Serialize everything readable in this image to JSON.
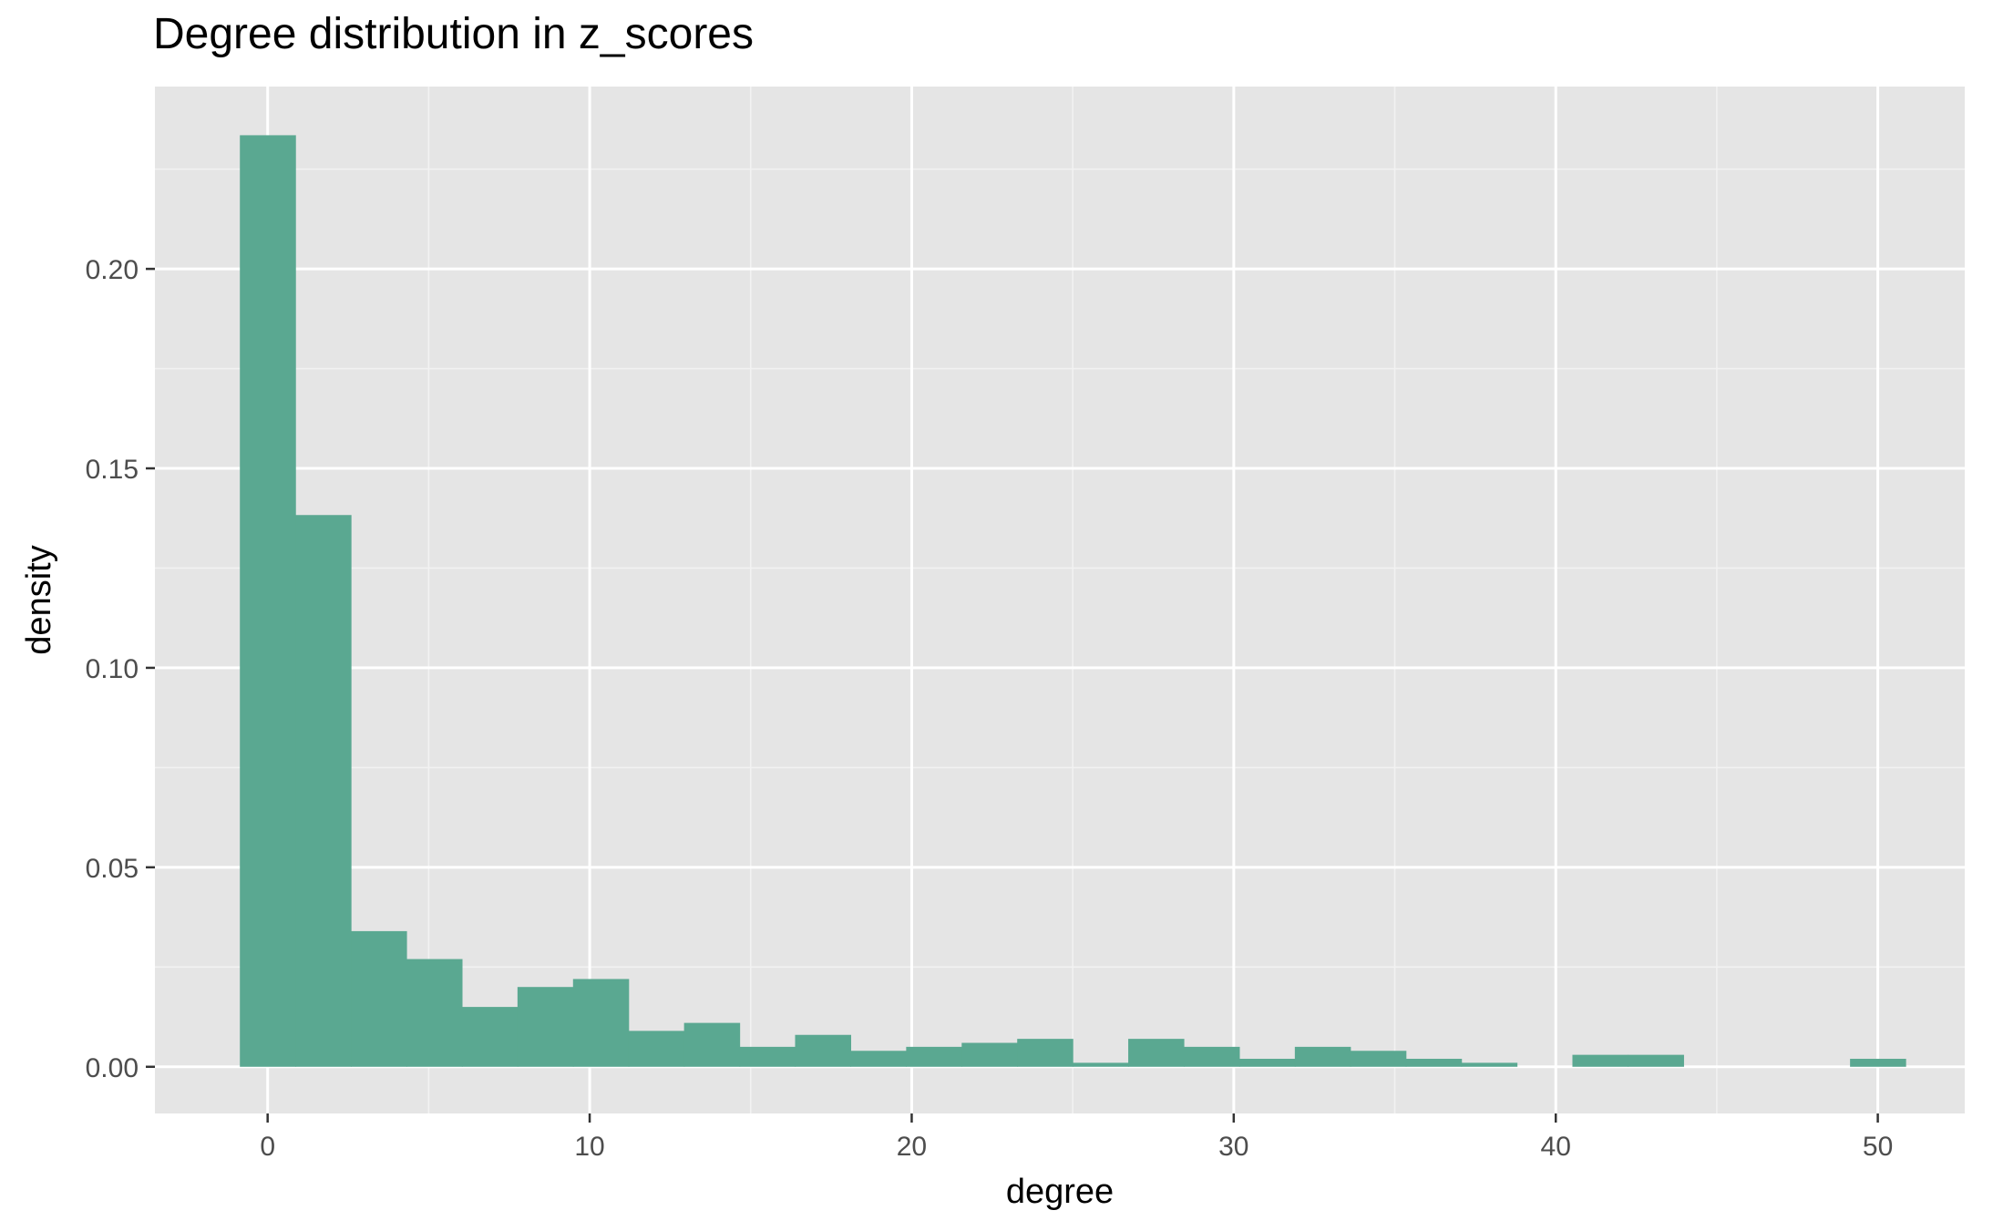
{
  "chart_data": {
    "type": "bar",
    "title": "Degree distribution in z_scores",
    "xlabel": "degree",
    "ylabel": "density",
    "xlim": [
      -3.5,
      52.7
    ],
    "ylim": [
      -0.0117,
      0.2457
    ],
    "x_ticks": [
      {
        "value": 0,
        "label": "0"
      },
      {
        "value": 10,
        "label": "10"
      },
      {
        "value": 20,
        "label": "20"
      },
      {
        "value": 30,
        "label": "30"
      },
      {
        "value": 40,
        "label": "40"
      },
      {
        "value": 50,
        "label": "50"
      }
    ],
    "y_ticks": [
      {
        "value": 0.0,
        "label": "0.00"
      },
      {
        "value": 0.05,
        "label": "0.05"
      },
      {
        "value": 0.1,
        "label": "0.10"
      },
      {
        "value": 0.15,
        "label": "0.15"
      },
      {
        "value": 0.2,
        "label": "0.20"
      }
    ],
    "bin_width": 1.724,
    "bins": [
      {
        "x0": -0.862,
        "x1": 0.862,
        "density": 0.2335
      },
      {
        "x0": 0.862,
        "x1": 2.586,
        "density": 0.1383
      },
      {
        "x0": 2.586,
        "x1": 4.31,
        "density": 0.034
      },
      {
        "x0": 4.31,
        "x1": 6.034,
        "density": 0.027
      },
      {
        "x0": 6.034,
        "x1": 7.759,
        "density": 0.015
      },
      {
        "x0": 7.759,
        "x1": 9.483,
        "density": 0.02
      },
      {
        "x0": 9.483,
        "x1": 11.207,
        "density": 0.022
      },
      {
        "x0": 11.207,
        "x1": 12.931,
        "density": 0.009
      },
      {
        "x0": 12.931,
        "x1": 14.655,
        "density": 0.011
      },
      {
        "x0": 14.655,
        "x1": 16.379,
        "density": 0.005
      },
      {
        "x0": 16.379,
        "x1": 18.103,
        "density": 0.008
      },
      {
        "x0": 18.103,
        "x1": 19.828,
        "density": 0.004
      },
      {
        "x0": 19.828,
        "x1": 21.552,
        "density": 0.005
      },
      {
        "x0": 21.552,
        "x1": 23.276,
        "density": 0.006
      },
      {
        "x0": 23.276,
        "x1": 25.0,
        "density": 0.007
      },
      {
        "x0": 25.0,
        "x1": 26.724,
        "density": 0.001
      },
      {
        "x0": 26.724,
        "x1": 28.448,
        "density": 0.007
      },
      {
        "x0": 28.448,
        "x1": 30.172,
        "density": 0.005
      },
      {
        "x0": 30.172,
        "x1": 31.897,
        "density": 0.002
      },
      {
        "x0": 31.897,
        "x1": 33.621,
        "density": 0.005
      },
      {
        "x0": 33.621,
        "x1": 35.345,
        "density": 0.004
      },
      {
        "x0": 35.345,
        "x1": 37.069,
        "density": 0.002
      },
      {
        "x0": 37.069,
        "x1": 38.793,
        "density": 0.001
      },
      {
        "x0": 38.793,
        "x1": 40.517,
        "density": 0.0
      },
      {
        "x0": 40.517,
        "x1": 42.241,
        "density": 0.003
      },
      {
        "x0": 42.241,
        "x1": 43.966,
        "density": 0.003
      },
      {
        "x0": 43.966,
        "x1": 45.69,
        "density": 0.0
      },
      {
        "x0": 45.69,
        "x1": 47.414,
        "density": 0.0
      },
      {
        "x0": 47.414,
        "x1": 49.138,
        "density": 0.0
      },
      {
        "x0": 49.138,
        "x1": 50.862,
        "density": 0.002
      }
    ],
    "grid": true,
    "legend": "none",
    "colors": {
      "fill": "#5aa891",
      "panel_background": "#e5e5e5",
      "grid_major": "#ffffff",
      "grid_minor": "#f2f2f2",
      "tick_text": "#4d4d4d",
      "axis_title": "#000000"
    }
  }
}
